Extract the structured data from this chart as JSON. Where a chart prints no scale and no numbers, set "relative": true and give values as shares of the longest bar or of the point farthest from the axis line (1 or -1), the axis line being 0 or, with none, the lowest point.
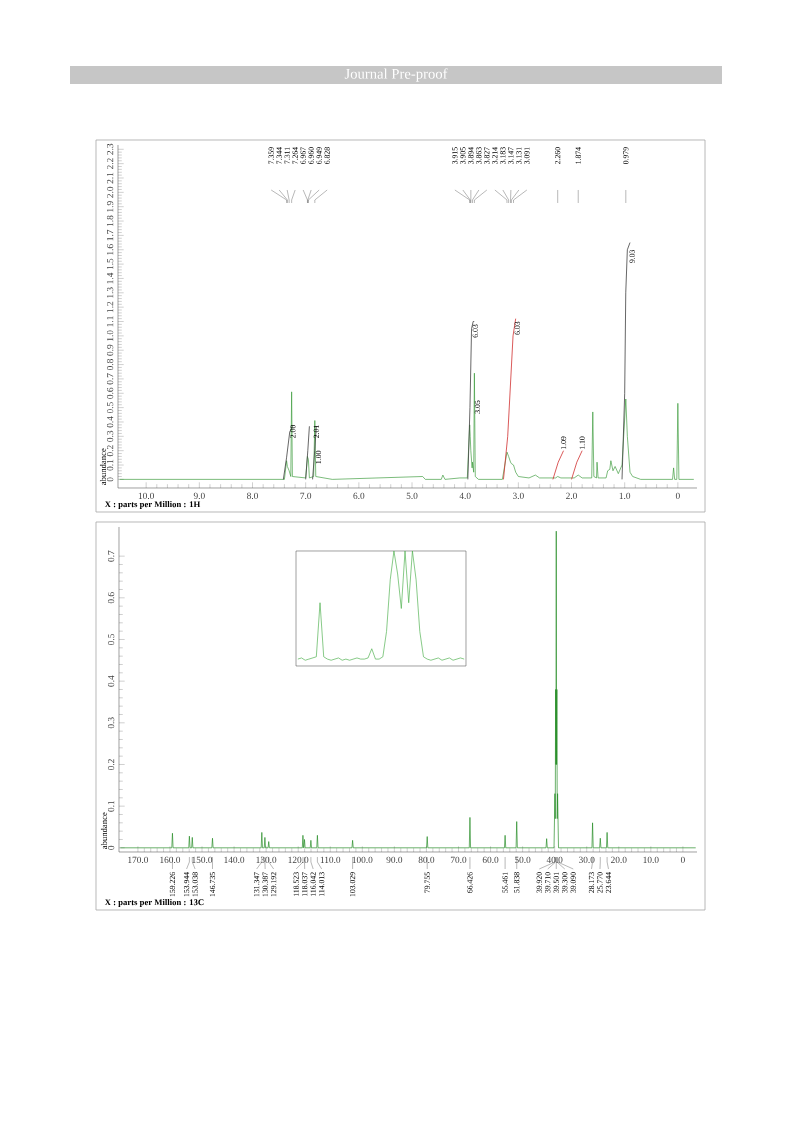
{
  "chart_data": [
    {
      "type": "line",
      "title": "Journal Pre-proof",
      "xlabel": "X : parts per Million : 1H",
      "ylabel": "abundance",
      "xlim": [
        10.53,
        -0.36
      ],
      "ylim": [
        -0.06,
        2.33
      ],
      "xticks": [
        {
          "value": 10,
          "label": "10.0"
        },
        {
          "value": 9,
          "label": "9.0"
        },
        {
          "value": 8,
          "label": "8.0"
        },
        {
          "value": 7,
          "label": "7.0"
        },
        {
          "value": 6,
          "label": "6.0"
        },
        {
          "value": 5,
          "label": "5.0"
        },
        {
          "value": 4,
          "label": "4.0"
        },
        {
          "value": 3,
          "label": "3.0"
        },
        {
          "value": 2,
          "label": "2.0"
        },
        {
          "value": 1,
          "label": "1.0"
        },
        0
      ],
      "yticks": [
        0,
        0.1,
        0.2,
        0.3,
        0.4,
        0.5,
        0.6,
        0.7,
        0.8,
        0.9,
        {
          "value": 1,
          "label": "1.0"
        },
        1.1,
        1.2,
        1.3,
        1.4,
        1.5,
        1.6,
        1.7,
        1.8,
        1.9,
        {
          "value": 2,
          "label": "2.0"
        },
        2.1,
        2.2,
        2.3
      ],
      "series": [
        {
          "color": "#3a9a3a",
          "x": [
            10.5,
            7.45,
            7.4,
            7.359,
            7.344,
            7.311,
            7.28,
            7.264,
            7.25,
            7.0,
            6.967,
            6.96,
            6.949,
            6.93,
            6.85,
            6.828,
            6.81,
            6.5,
            4.8,
            4.75,
            4.45,
            4.42,
            4.38,
            4.1,
            3.96,
            3.915,
            3.905,
            3.894,
            3.87,
            3.863,
            3.84,
            3.827,
            3.81,
            3.75,
            3.3,
            3.214,
            3.183,
            3.147,
            3.131,
            3.091,
            3.05,
            3.0,
            2.8,
            2.68,
            2.6,
            2.3,
            2.26,
            2.2,
            1.95,
            1.874,
            1.8,
            1.62,
            1.6,
            1.58,
            1.53,
            1.52,
            1.5,
            1.35,
            1.32,
            1.28,
            1.26,
            1.22,
            1.18,
            1.12,
            1.05,
            0.979,
            0.95,
            0.9,
            0.85,
            0.7,
            0.1,
            0.08,
            0.06,
            0.02,
            0.0,
            -0.02,
            -0.3
          ],
          "values": [
            0,
            0,
            0,
            0.13,
            0.09,
            0.06,
            0.02,
            0.61,
            0.02,
            0.01,
            0.16,
            0.15,
            0.14,
            0.01,
            0.02,
            0.41,
            0.02,
            0,
            0.02,
            0,
            0,
            0.03,
            0,
            0.01,
            0.01,
            0.38,
            0.3,
            0.2,
            0.08,
            0.12,
            0.05,
            0.74,
            0.02,
            0,
            0,
            0.19,
            0.16,
            0.12,
            0.11,
            0.1,
            0.05,
            0.02,
            0.01,
            0.03,
            0.01,
            0.01,
            0.02,
            0.01,
            0.01,
            0.03,
            0.01,
            0.01,
            0.47,
            0.02,
            0.01,
            0.12,
            0.01,
            0.01,
            0.06,
            0.07,
            0.13,
            0.06,
            0.09,
            0.04,
            0.1,
            0.56,
            0.3,
            0.05,
            0.02,
            0,
            0,
            0.08,
            0,
            0,
            0.53,
            0,
            0
          ]
        },
        {
          "type": "line",
          "color": "#404040",
          "x": [
            7.42,
            7.36,
            7.3,
            7.25
          ],
          "values": [
            0,
            0.15,
            0.33,
            0.37
          ]
        },
        {
          "type": "line",
          "color": "#404040",
          "x": [
            7.0,
            6.96,
            6.93
          ],
          "values": [
            0,
            0.2,
            0.37
          ]
        },
        {
          "type": "line",
          "color": "#404040",
          "x": [
            6.87,
            6.83,
            6.8
          ],
          "values": [
            0,
            0.2,
            0.37
          ]
        },
        {
          "type": "line",
          "color": "#404040",
          "x": [
            3.95,
            3.91,
            3.88,
            3.85,
            3.83
          ],
          "values": [
            0,
            0.5,
            1.05,
            1.1,
            1.1
          ]
        },
        {
          "type": "line",
          "color": "#d03030",
          "x": [
            3.28,
            3.2,
            3.1,
            3.05
          ],
          "values": [
            0,
            0.3,
            1.0,
            1.12
          ]
        },
        {
          "type": "line",
          "color": "#d03030",
          "x": [
            2.35,
            2.25,
            2.15
          ],
          "values": [
            0,
            0.12,
            0.2
          ]
        },
        {
          "type": "line",
          "color": "#d03030",
          "x": [
            2.0,
            1.9,
            1.8
          ],
          "values": [
            0,
            0.12,
            0.2
          ]
        },
        {
          "type": "line",
          "color": "#404040",
          "x": [
            1.05,
            1.0,
            0.98,
            0.95,
            0.9
          ],
          "values": [
            0,
            0.6,
            1.3,
            1.6,
            1.65
          ]
        }
      ],
      "annotations": [
        "7.359",
        "7.344",
        "7.311",
        "7.264",
        "6.967",
        "6.960",
        "6.949",
        "6.828",
        "3.915",
        "3.905",
        "3.894",
        "3.863",
        "3.827",
        "3.214",
        "3.183",
        "3.147",
        "3.131",
        "3.091",
        "2.260",
        "1.874",
        "0.979",
        {
          "text": "2.00",
          "x": 7.24,
          "y": 0.28
        },
        {
          "text": "2.01",
          "x": 6.8,
          "y": 0.28
        },
        {
          "text": "1.00",
          "x": 6.76,
          "y": 0.1
        },
        {
          "text": "6.03",
          "x": 3.81,
          "y": 0.98
        },
        {
          "text": "3.05",
          "x": 3.77,
          "y": 0.45
        },
        {
          "text": "6.03",
          "x": 3.02,
          "y": 1.0
        },
        {
          "text": "1.09",
          "x": 2.15,
          "y": 0.2
        },
        {
          "text": "1.10",
          "x": 1.8,
          "y": 0.2
        },
        {
          "text": "9.03",
          "x": 0.86,
          "y": 1.5
        }
      ]
    },
    {
      "type": "line",
      "xlabel": "X : parts per Million : 13C",
      "ylabel": "abundance",
      "xlim": [
        175.9,
        -4.4
      ],
      "ylim": [
        -0.01,
        0.77
      ],
      "xticks": [
        {
          "value": 170,
          "label": "170.0"
        },
        {
          "value": 160,
          "label": "160.0"
        },
        {
          "value": 150,
          "label": "150.0"
        },
        {
          "value": 140,
          "label": "140.0"
        },
        {
          "value": 130,
          "label": "130.0"
        },
        {
          "value": 120,
          "label": "120.0"
        },
        {
          "value": 110,
          "label": "110.0"
        },
        {
          "value": 100,
          "label": "100.0"
        },
        {
          "value": 90,
          "label": "90.0"
        },
        {
          "value": 80,
          "label": "80.0"
        },
        {
          "value": 70,
          "label": "70.0"
        },
        {
          "value": 60,
          "label": "60.0"
        },
        {
          "value": 50,
          "label": "50.0"
        },
        {
          "value": 40,
          "label": "40.0"
        },
        {
          "value": 30,
          "label": "30.0"
        },
        {
          "value": 20,
          "label": "20.0"
        },
        {
          "value": 10,
          "label": "10.0"
        },
        0
      ],
      "yticks": [
        0,
        0.1,
        0.2,
        0.3,
        0.4,
        0.5,
        0.6,
        0.7
      ],
      "series": [
        {
          "color": "#1f8a1f",
          "x": [
            175.5,
            159.43,
            159.226,
            159.03,
            154.14,
            153.944,
            153.74,
            153.24,
            153.038,
            152.84,
            146.94,
            146.735,
            146.54,
            131.55,
            131.347,
            131.15,
            130.59,
            130.387,
            130.19,
            129.39,
            129.192,
            128.99,
            118.72,
            118.523,
            118.32,
            118.24,
            118.037,
            117.84,
            116.24,
            116.042,
            115.84,
            114.21,
            114.013,
            113.81,
            103.23,
            103.029,
            102.83,
            79.96,
            79.755,
            79.56,
            66.63,
            66.426,
            66.23,
            55.66,
            55.461,
            55.26,
            52.04,
            51.838,
            51.64,
            42.7,
            42.5,
            42.3,
            40.2,
            39.92,
            39.81,
            39.71,
            39.6,
            39.501,
            39.4,
            39.3,
            39.2,
            39.09,
            38.8,
            28.37,
            28.173,
            27.97,
            25.97,
            25.77,
            25.57,
            23.84,
            23.644,
            23.44,
            -4.0
          ],
          "values": [
            0,
            0,
            0.035,
            0,
            0,
            0.028,
            0,
            0,
            0.025,
            0,
            0,
            0.023,
            0,
            0,
            0.037,
            0,
            0,
            0.025,
            0,
            0,
            0.015,
            0,
            0,
            0.03,
            0,
            0,
            0.02,
            0,
            0,
            0.018,
            0,
            0,
            0.03,
            0,
            0,
            0.018,
            0,
            0,
            0.027,
            0,
            0,
            0.073,
            0,
            0,
            0.03,
            0,
            0,
            0.063,
            0,
            0,
            0.022,
            0,
            0,
            0.13,
            0.07,
            0.38,
            0.2,
            0.76,
            0.2,
            0.38,
            0.07,
            0.13,
            0,
            0,
            0.06,
            0,
            0,
            0.023,
            0,
            0,
            0.037,
            0,
            0
          ]
        }
      ],
      "annotations": [
        "159.226",
        "153.944",
        "153.038",
        "146.735",
        "131.347",
        "130.387",
        "129.192",
        "118.523",
        "118.037",
        "116.042",
        "114.013",
        "103.029",
        "79.755",
        "66.426",
        "55.461",
        "51.838",
        "39.920",
        "39.710",
        "39.501",
        "39.300",
        "39.090",
        "28.173",
        "25.770",
        "23.644"
      ]
    },
    {
      "type": "line",
      "relative": true,
      "categories": [
        null,
        null,
        null,
        null,
        null,
        null,
        null,
        null,
        null,
        null,
        null,
        null,
        null,
        null,
        null,
        null,
        null,
        null,
        null,
        null,
        null,
        null,
        null,
        null,
        null,
        null,
        null,
        null,
        null,
        null,
        null,
        null,
        null,
        null,
        null,
        null,
        null,
        null,
        null,
        null,
        null,
        null,
        null,
        null,
        null,
        null
      ],
      "series": [
        {
          "color": "#4caf4c",
          "values": [
            0.06,
            0.07,
            0.05,
            0.06,
            0.07,
            0.08,
            0.55,
            0.08,
            0.06,
            0.05,
            0.06,
            0.07,
            0.05,
            0.06,
            0.05,
            0.06,
            0.07,
            0.06,
            0.06,
            0.07,
            0.15,
            0.06,
            0.06,
            0.08,
            0.3,
            0.75,
            1,
            0.8,
            0.5,
            1,
            0.55,
            1,
            0.75,
            0.3,
            0.08,
            0.06,
            0.05,
            0.06,
            0.07,
            0.05,
            0.06,
            0.07,
            0.05,
            0.06,
            0.07,
            0.06
          ]
        }
      ]
    }
  ]
}
